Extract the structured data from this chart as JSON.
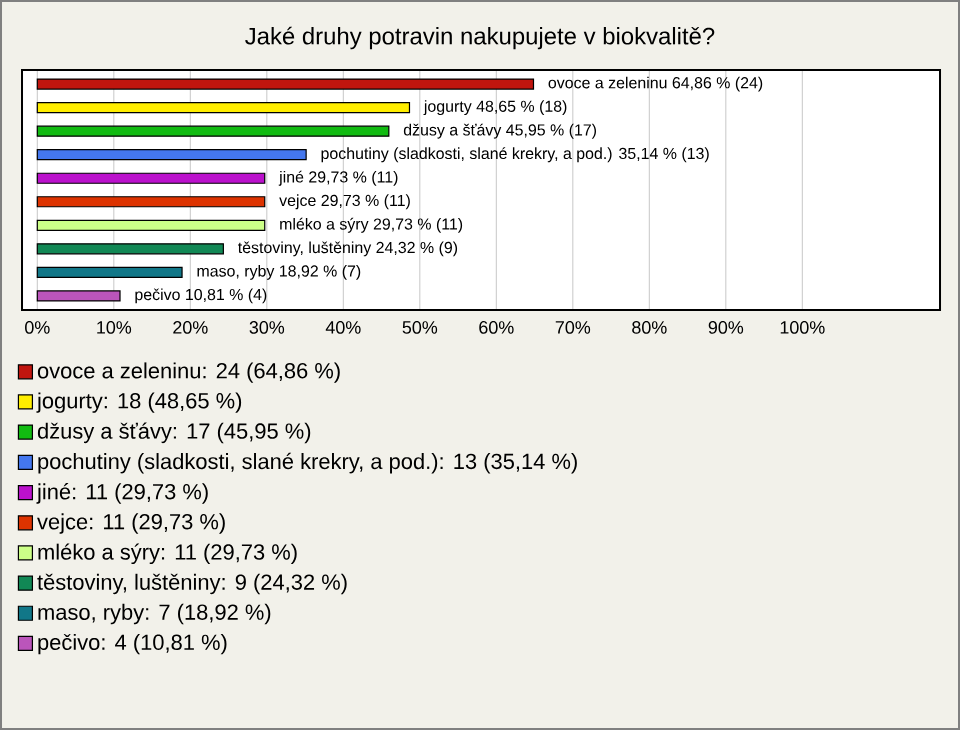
{
  "chart_data": {
    "type": "bar",
    "orientation": "horizontal",
    "title": "Jaké druhy potravin nakupujete v biokvalitě?",
    "categories": [
      null,
      null,
      null,
      null,
      null,
      null,
      null,
      null,
      null,
      null
    ],
    "series": [
      {
        "name": "ovoce a zeleninu: 24 (64,86 %)",
        "color": "#c0150e",
        "values": [
          64.86,
          null,
          null,
          null,
          null,
          null,
          null,
          null,
          null,
          null
        ],
        "value_labels": [
          "ovoce a zeleninu 64,86 % (24)",
          null,
          null,
          null,
          null,
          null,
          null,
          null,
          null,
          null
        ]
      },
      {
        "name": "jogurty: 18 (48,65 %)",
        "color": "#ffee00",
        "values": [
          null,
          48.65,
          null,
          null,
          null,
          null,
          null,
          null,
          null,
          null
        ],
        "value_labels": [
          null,
          "jogurty 48,65 % (18)",
          null,
          null,
          null,
          null,
          null,
          null,
          null,
          null
        ]
      },
      {
        "name": "džusy a šťávy: 17 (45,95 %)",
        "color": "#11bb11",
        "values": [
          null,
          null,
          45.95,
          null,
          null,
          null,
          null,
          null,
          null,
          null
        ],
        "value_labels": [
          null,
          null,
          "džusy a šťávy 45,95 % (17)",
          null,
          null,
          null,
          null,
          null,
          null,
          null
        ]
      },
      {
        "name": "pochutiny (sladkosti, slané krekry, a pod.): 13 (35,14 %)",
        "color": "#4477ee",
        "values": [
          null,
          null,
          null,
          35.14,
          null,
          null,
          null,
          null,
          null,
          null
        ],
        "value_labels": [
          null,
          null,
          null,
          "pochutiny (sladkosti, slané krekry, a pod.) 35,14 % (13)",
          null,
          null,
          null,
          null,
          null,
          null
        ]
      },
      {
        "name": "jiné: 11 (29,73 %)",
        "color": "#bb11cc",
        "values": [
          null,
          null,
          null,
          null,
          29.73,
          null,
          null,
          null,
          null,
          null
        ],
        "value_labels": [
          null,
          null,
          null,
          null,
          "jiné 29,73 % (11)",
          null,
          null,
          null,
          null,
          null
        ]
      },
      {
        "name": "vejce: 11 (29,73 %)",
        "color": "#dd3300",
        "values": [
          null,
          null,
          null,
          null,
          null,
          29.73,
          null,
          null,
          null,
          null
        ],
        "value_labels": [
          null,
          null,
          null,
          null,
          null,
          "vejce 29,73 % (11)",
          null,
          null,
          null,
          null
        ]
      },
      {
        "name": "mléko a sýry: 11 (29,73 %)",
        "color": "#ccff88",
        "values": [
          null,
          null,
          null,
          null,
          null,
          null,
          29.73,
          null,
          null,
          null
        ],
        "value_labels": [
          null,
          null,
          null,
          null,
          null,
          null,
          "mléko a sýry 29,73 % (11)",
          null,
          null,
          null
        ]
      },
      {
        "name": "těstoviny, luštěniny: 9 (24,32 %)",
        "color": "#118855",
        "values": [
          null,
          null,
          null,
          null,
          null,
          null,
          null,
          24.32,
          null,
          null
        ],
        "value_labels": [
          null,
          null,
          null,
          null,
          null,
          null,
          null,
          "těstoviny, luštěniny 24,32 % (9)",
          null,
          null
        ]
      },
      {
        "name": "maso, ryby: 7 (18,92 %)",
        "color": "#117788",
        "values": [
          null,
          null,
          null,
          null,
          null,
          null,
          null,
          null,
          18.92,
          null
        ],
        "value_labels": [
          null,
          null,
          null,
          null,
          null,
          null,
          null,
          null,
          "maso, ryby 18,92 % (7)",
          null
        ]
      },
      {
        "name": "pečivo: 4 (10,81 %)",
        "color": "#bb55bb",
        "values": [
          null,
          null,
          null,
          null,
          null,
          null,
          null,
          null,
          null,
          10.81
        ],
        "value_labels": [
          null,
          null,
          null,
          null,
          null,
          null,
          null,
          null,
          null,
          "pečivo 10,81 % (4)"
        ]
      }
    ],
    "xlim": [
      -2,
      118
    ],
    "xticks": [
      {
        "value": 0,
        "label": "0%"
      },
      {
        "value": 10,
        "label": "10%"
      },
      {
        "value": 20,
        "label": "20%"
      },
      {
        "value": 30,
        "label": "30%"
      },
      {
        "value": 40,
        "label": "40%"
      },
      {
        "value": 50,
        "label": "50%"
      },
      {
        "value": 60,
        "label": "60%"
      },
      {
        "value": 70,
        "label": "70%"
      },
      {
        "value": 80,
        "label": "80%"
      },
      {
        "value": 90,
        "label": "90%"
      },
      {
        "value": 100,
        "label": "100%"
      }
    ],
    "grid": "x",
    "legend": "bottom"
  }
}
